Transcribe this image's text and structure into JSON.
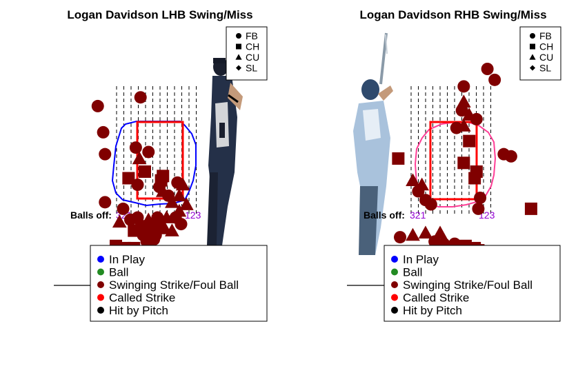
{
  "colors": {
    "in_play": "#0000ff",
    "ball": "#228b22",
    "swing_foul": "#800000",
    "called_strike": "#ff0000",
    "hbp": "#000000",
    "lhb_zone_outline": "#0000ff",
    "rhb_zone_outline": "#ff3e96",
    "strike_zone": "#ff0000",
    "balls_off_numbers": "#9400d3"
  },
  "pitch_legend": [
    {
      "label": "FB",
      "shape": "circle"
    },
    {
      "label": "CH",
      "shape": "square"
    },
    {
      "label": "CU",
      "shape": "triangle"
    },
    {
      "label": "SL",
      "shape": "diamond"
    }
  ],
  "result_legend": [
    {
      "label": "In Play",
      "color": "#0000ff"
    },
    {
      "label": "Ball",
      "color": "#228b22"
    },
    {
      "label": "Swinging Strike/Foul Ball",
      "color": "#800000"
    },
    {
      "label": "Called Strike",
      "color": "#ff0000"
    },
    {
      "label": "Hit by Pitch",
      "color": "#000000"
    }
  ],
  "balls_off_label": "Balls off:",
  "balls_off_left": "321",
  "balls_off_right": "123",
  "chart_data": [
    {
      "type": "scatter",
      "title": "Logan Davidson LHB Swing/Miss",
      "batter_image": "left-handed batter photo (decorative)",
      "xlim": [
        -2,
        2
      ],
      "ylim": [
        0,
        5
      ],
      "strike_zone": {
        "x": [
          -0.83,
          0.83
        ],
        "y": [
          1.5,
          3.5
        ]
      },
      "points": [
        {
          "x": -1.7,
          "y": 4.15,
          "pitch": "FB",
          "result": "swing_foul"
        },
        {
          "x": -0.52,
          "y": 4.35,
          "pitch": "FB",
          "result": "swing_foul"
        },
        {
          "x": -1.55,
          "y": 3.55,
          "pitch": "FB",
          "result": "swing_foul"
        },
        {
          "x": -1.5,
          "y": 3.05,
          "pitch": "FB",
          "result": "swing_foul"
        },
        {
          "x": -0.65,
          "y": 3.2,
          "pitch": "FB",
          "result": "swing_foul"
        },
        {
          "x": -0.3,
          "y": 3.1,
          "pitch": "FB",
          "result": "swing_foul"
        },
        {
          "x": -0.55,
          "y": 2.95,
          "pitch": "CU",
          "result": "swing_foul"
        },
        {
          "x": -0.4,
          "y": 2.65,
          "pitch": "CH",
          "result": "swing_foul"
        },
        {
          "x": -0.85,
          "y": 2.5,
          "pitch": "CH",
          "result": "swing_foul"
        },
        {
          "x": -0.6,
          "y": 2.35,
          "pitch": "FB",
          "result": "swing_foul"
        },
        {
          "x": 0.1,
          "y": 2.55,
          "pitch": "CH",
          "result": "swing_foul"
        },
        {
          "x": 0.05,
          "y": 2.45,
          "pitch": "CH",
          "result": "swing_foul"
        },
        {
          "x": 0.0,
          "y": 2.3,
          "pitch": "FB",
          "result": "swing_foul"
        },
        {
          "x": 0.1,
          "y": 2.2,
          "pitch": "CU",
          "result": "swing_foul"
        },
        {
          "x": 0.5,
          "y": 2.4,
          "pitch": "FB",
          "result": "swing_foul"
        },
        {
          "x": 0.65,
          "y": 2.35,
          "pitch": "CU",
          "result": "swing_foul"
        },
        {
          "x": 0.25,
          "y": 2.1,
          "pitch": "FB",
          "result": "swing_foul"
        },
        {
          "x": 0.35,
          "y": 1.95,
          "pitch": "CU",
          "result": "swing_foul"
        },
        {
          "x": 0.55,
          "y": 2.1,
          "pitch": "CU",
          "result": "swing_foul"
        },
        {
          "x": 0.75,
          "y": 1.9,
          "pitch": "CU",
          "result": "swing_foul"
        },
        {
          "x": -1.5,
          "y": 1.95,
          "pitch": "FB",
          "result": "swing_foul"
        },
        {
          "x": -1.0,
          "y": 1.8,
          "pitch": "FB",
          "result": "swing_foul"
        },
        {
          "x": -1.1,
          "y": 1.5,
          "pitch": "CU",
          "result": "swing_foul"
        },
        {
          "x": -0.8,
          "y": 1.55,
          "pitch": "FB",
          "result": "swing_foul"
        },
        {
          "x": -0.6,
          "y": 1.6,
          "pitch": "FB",
          "result": "swing_foul"
        },
        {
          "x": -0.3,
          "y": 1.55,
          "pitch": "CU",
          "result": "swing_foul"
        },
        {
          "x": -0.05,
          "y": 1.6,
          "pitch": "FB",
          "result": "swing_foul"
        },
        {
          "x": 0.2,
          "y": 1.6,
          "pitch": "CU",
          "result": "swing_foul"
        },
        {
          "x": 0.45,
          "y": 1.6,
          "pitch": "FB",
          "result": "swing_foul"
        },
        {
          "x": 0.55,
          "y": 1.75,
          "pitch": "CU",
          "result": "swing_foul"
        },
        {
          "x": -0.7,
          "y": 1.3,
          "pitch": "CH",
          "result": "swing_foul"
        },
        {
          "x": -0.5,
          "y": 1.4,
          "pitch": "CH",
          "result": "swing_foul"
        },
        {
          "x": -0.35,
          "y": 1.25,
          "pitch": "CH",
          "result": "swing_foul"
        },
        {
          "x": -0.2,
          "y": 1.35,
          "pitch": "CH",
          "result": "swing_foul"
        },
        {
          "x": 0.0,
          "y": 1.4,
          "pitch": "CH",
          "result": "swing_foul"
        },
        {
          "x": -0.45,
          "y": 1.2,
          "pitch": "FB",
          "result": "swing_foul"
        },
        {
          "x": -0.1,
          "y": 1.2,
          "pitch": "FB",
          "result": "swing_foul"
        },
        {
          "x": 0.15,
          "y": 1.35,
          "pitch": "CU",
          "result": "swing_foul"
        },
        {
          "x": 0.35,
          "y": 1.3,
          "pitch": "CU",
          "result": "swing_foul"
        },
        {
          "x": 0.6,
          "y": 1.45,
          "pitch": "FB",
          "result": "swing_foul"
        },
        {
          "x": -0.15,
          "y": 1.1,
          "pitch": "FB",
          "result": "swing_foul"
        },
        {
          "x": -0.35,
          "y": 1.05,
          "pitch": "FB",
          "result": "swing_foul"
        },
        {
          "x": -1.2,
          "y": 0.95,
          "pitch": "CH",
          "result": "swing_foul"
        },
        {
          "x": -0.95,
          "y": 0.9,
          "pitch": "CH",
          "result": "swing_foul"
        },
        {
          "x": -0.7,
          "y": 0.9,
          "pitch": "CH",
          "result": "swing_foul"
        },
        {
          "x": -0.2,
          "y": 0.75,
          "pitch": "CU",
          "result": "swing_foul"
        },
        {
          "x": 0.55,
          "y": 0.55,
          "pitch": "FB",
          "result": "swing_foul"
        }
      ]
    },
    {
      "type": "scatter",
      "title": "Logan Davidson RHB Swing/Miss",
      "batter_image": "right-handed batter photo (decorative)",
      "xlim": [
        -2,
        2
      ],
      "ylim": [
        0,
        5
      ],
      "strike_zone": {
        "x": [
          -0.83,
          0.83
        ],
        "y": [
          1.5,
          3.5
        ]
      },
      "points": [
        {
          "x": 0.95,
          "y": 5.0,
          "pitch": "FB",
          "result": "swing_foul"
        },
        {
          "x": 1.15,
          "y": 4.75,
          "pitch": "FB",
          "result": "swing_foul"
        },
        {
          "x": 0.3,
          "y": 4.6,
          "pitch": "FB",
          "result": "swing_foul"
        },
        {
          "x": 0.3,
          "y": 4.25,
          "pitch": "CU",
          "result": "swing_foul"
        },
        {
          "x": 0.25,
          "y": 4.05,
          "pitch": "FB",
          "result": "swing_foul"
        },
        {
          "x": 0.65,
          "y": 3.85,
          "pitch": "FB",
          "result": "swing_foul"
        },
        {
          "x": 0.45,
          "y": 3.95,
          "pitch": "CU",
          "result": "swing_foul"
        },
        {
          "x": 0.1,
          "y": 3.65,
          "pitch": "FB",
          "result": "swing_foul"
        },
        {
          "x": 0.3,
          "y": 3.7,
          "pitch": "CU",
          "result": "swing_foul"
        },
        {
          "x": 0.45,
          "y": 3.35,
          "pitch": "CH",
          "result": "swing_foul"
        },
        {
          "x": 1.4,
          "y": 3.05,
          "pitch": "FB",
          "result": "swing_foul"
        },
        {
          "x": 1.6,
          "y": 3.0,
          "pitch": "FB",
          "result": "swing_foul"
        },
        {
          "x": -1.5,
          "y": 2.95,
          "pitch": "CH",
          "result": "swing_foul"
        },
        {
          "x": 0.3,
          "y": 2.85,
          "pitch": "CH",
          "result": "swing_foul"
        },
        {
          "x": 0.65,
          "y": 2.65,
          "pitch": "CH",
          "result": "swing_foul"
        },
        {
          "x": 0.6,
          "y": 2.5,
          "pitch": "CH",
          "result": "swing_foul"
        },
        {
          "x": -1.1,
          "y": 2.45,
          "pitch": "CU",
          "result": "swing_foul"
        },
        {
          "x": -0.85,
          "y": 2.35,
          "pitch": "CU",
          "result": "swing_foul"
        },
        {
          "x": -0.95,
          "y": 2.2,
          "pitch": "FB",
          "result": "swing_foul"
        },
        {
          "x": -0.75,
          "y": 2.0,
          "pitch": "FB",
          "result": "swing_foul"
        },
        {
          "x": -0.6,
          "y": 1.9,
          "pitch": "FB",
          "result": "swing_foul"
        },
        {
          "x": 0.75,
          "y": 2.05,
          "pitch": "FB",
          "result": "swing_foul"
        },
        {
          "x": 0.7,
          "y": 1.8,
          "pitch": "FB",
          "result": "swing_foul"
        },
        {
          "x": 2.15,
          "y": 1.8,
          "pitch": "CH",
          "result": "swing_foul"
        },
        {
          "x": -1.45,
          "y": 1.15,
          "pitch": "FB",
          "result": "swing_foul"
        },
        {
          "x": -1.1,
          "y": 1.2,
          "pitch": "CU",
          "result": "swing_foul"
        },
        {
          "x": -0.75,
          "y": 1.25,
          "pitch": "CU",
          "result": "swing_foul"
        },
        {
          "x": -0.35,
          "y": 1.25,
          "pitch": "CU",
          "result": "swing_foul"
        },
        {
          "x": -0.5,
          "y": 1.05,
          "pitch": "FB",
          "result": "swing_foul"
        },
        {
          "x": -0.25,
          "y": 1.0,
          "pitch": "FB",
          "result": "swing_foul"
        },
        {
          "x": 0.05,
          "y": 1.0,
          "pitch": "FB",
          "result": "swing_foul"
        },
        {
          "x": 0.35,
          "y": 0.95,
          "pitch": "CH",
          "result": "swing_foul"
        },
        {
          "x": 0.6,
          "y": 0.9,
          "pitch": "CH",
          "result": "swing_foul"
        },
        {
          "x": 0.7,
          "y": 0.85,
          "pitch": "CH",
          "result": "swing_foul"
        },
        {
          "x": -0.6,
          "y": 0.75,
          "pitch": "FB",
          "result": "swing_foul"
        },
        {
          "x": -0.45,
          "y": 0.7,
          "pitch": "FB",
          "result": "swing_foul"
        },
        {
          "x": -0.15,
          "y": 0.6,
          "pitch": "FB",
          "result": "swing_foul"
        },
        {
          "x": -0.1,
          "y": 0.5,
          "pitch": "CU",
          "result": "swing_foul"
        },
        {
          "x": -0.95,
          "y": 0.35,
          "pitch": "CU",
          "result": "swing_foul"
        },
        {
          "x": -0.05,
          "y": 0.3,
          "pitch": "FB",
          "result": "swing_foul"
        },
        {
          "x": -0.45,
          "y": 0.35,
          "pitch": "CU",
          "result": "swing_foul"
        }
      ]
    }
  ]
}
